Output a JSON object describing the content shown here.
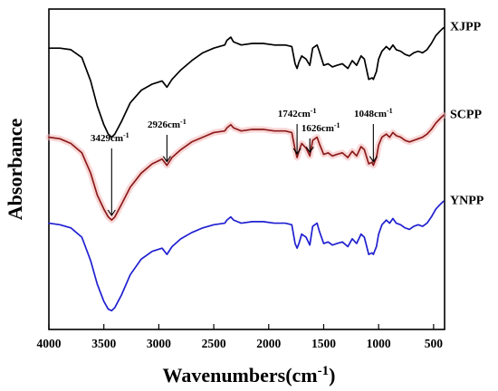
{
  "chart_data": {
    "type": "line",
    "xlabel": "Wavenumbers",
    "xlabel_unit_base": "(cm",
    "xlabel_unit_exp": "-1",
    "xlabel_unit_close": ")",
    "ylabel": "Absorbance",
    "xlim": [
      4000,
      400
    ],
    "x_reversed": true,
    "x_ticks": [
      4000,
      3500,
      3000,
      2500,
      2000,
      1500,
      1000,
      500
    ],
    "y_ticks_shown": false,
    "grid": false,
    "series": [
      {
        "name": "XJPP",
        "color": "#000000",
        "points": [
          [
            4000,
            2.25
          ],
          [
            3900,
            2.25
          ],
          [
            3800,
            2.24
          ],
          [
            3700,
            2.19
          ],
          [
            3620,
            2.04
          ],
          [
            3560,
            1.88
          ],
          [
            3500,
            1.76
          ],
          [
            3460,
            1.7
          ],
          [
            3429,
            1.68
          ],
          [
            3400,
            1.7
          ],
          [
            3340,
            1.78
          ],
          [
            3260,
            1.9
          ],
          [
            3160,
            1.98
          ],
          [
            3060,
            2.02
          ],
          [
            2970,
            2.04
          ],
          [
            2926,
            2.0
          ],
          [
            2880,
            2.05
          ],
          [
            2800,
            2.11
          ],
          [
            2700,
            2.17
          ],
          [
            2600,
            2.22
          ],
          [
            2500,
            2.25
          ],
          [
            2400,
            2.27
          ],
          [
            2380,
            2.3
          ],
          [
            2345,
            2.32
          ],
          [
            2320,
            2.29
          ],
          [
            2250,
            2.27
          ],
          [
            2150,
            2.28
          ],
          [
            2050,
            2.28
          ],
          [
            1950,
            2.27
          ],
          [
            1850,
            2.27
          ],
          [
            1790,
            2.26
          ],
          [
            1760,
            2.15
          ],
          [
            1742,
            2.12
          ],
          [
            1725,
            2.16
          ],
          [
            1700,
            2.2
          ],
          [
            1660,
            2.18
          ],
          [
            1626,
            2.14
          ],
          [
            1600,
            2.25
          ],
          [
            1560,
            2.27
          ],
          [
            1540,
            2.23
          ],
          [
            1500,
            2.14
          ],
          [
            1460,
            2.15
          ],
          [
            1420,
            2.13
          ],
          [
            1380,
            2.14
          ],
          [
            1330,
            2.15
          ],
          [
            1280,
            2.12
          ],
          [
            1240,
            2.17
          ],
          [
            1200,
            2.14
          ],
          [
            1160,
            2.2
          ],
          [
            1130,
            2.18
          ],
          [
            1090,
            2.05
          ],
          [
            1060,
            2.06
          ],
          [
            1048,
            2.05
          ],
          [
            1020,
            2.1
          ],
          [
            1000,
            2.18
          ],
          [
            970,
            2.23
          ],
          [
            930,
            2.26
          ],
          [
            900,
            2.24
          ],
          [
            870,
            2.27
          ],
          [
            840,
            2.24
          ],
          [
            800,
            2.23
          ],
          [
            760,
            2.21
          ],
          [
            720,
            2.2
          ],
          [
            680,
            2.22
          ],
          [
            640,
            2.23
          ],
          [
            600,
            2.22
          ],
          [
            560,
            2.24
          ],
          [
            520,
            2.28
          ],
          [
            480,
            2.33
          ],
          [
            440,
            2.36
          ],
          [
            410,
            2.38
          ]
        ]
      },
      {
        "name": "SCPP",
        "color": "#8B1A1A",
        "points": [
          [
            4000,
            1.68
          ],
          [
            3900,
            1.67
          ],
          [
            3800,
            1.64
          ],
          [
            3700,
            1.58
          ],
          [
            3620,
            1.45
          ],
          [
            3560,
            1.31
          ],
          [
            3500,
            1.22
          ],
          [
            3460,
            1.17
          ],
          [
            3429,
            1.15
          ],
          [
            3400,
            1.17
          ],
          [
            3340,
            1.25
          ],
          [
            3260,
            1.36
          ],
          [
            3160,
            1.45
          ],
          [
            3060,
            1.51
          ],
          [
            2970,
            1.54
          ],
          [
            2926,
            1.5
          ],
          [
            2880,
            1.55
          ],
          [
            2800,
            1.6
          ],
          [
            2700,
            1.65
          ],
          [
            2600,
            1.68
          ],
          [
            2500,
            1.71
          ],
          [
            2400,
            1.72
          ],
          [
            2380,
            1.74
          ],
          [
            2345,
            1.76
          ],
          [
            2320,
            1.74
          ],
          [
            2250,
            1.72
          ],
          [
            2150,
            1.73
          ],
          [
            2050,
            1.73
          ],
          [
            1950,
            1.72
          ],
          [
            1850,
            1.72
          ],
          [
            1790,
            1.71
          ],
          [
            1760,
            1.6
          ],
          [
            1742,
            1.55
          ],
          [
            1725,
            1.59
          ],
          [
            1700,
            1.64
          ],
          [
            1660,
            1.61
          ],
          [
            1626,
            1.56
          ],
          [
            1600,
            1.66
          ],
          [
            1560,
            1.68
          ],
          [
            1540,
            1.64
          ],
          [
            1500,
            1.57
          ],
          [
            1460,
            1.58
          ],
          [
            1420,
            1.56
          ],
          [
            1380,
            1.57
          ],
          [
            1330,
            1.58
          ],
          [
            1280,
            1.55
          ],
          [
            1240,
            1.59
          ],
          [
            1200,
            1.56
          ],
          [
            1160,
            1.62
          ],
          [
            1130,
            1.6
          ],
          [
            1090,
            1.51
          ],
          [
            1060,
            1.52
          ],
          [
            1048,
            1.5
          ],
          [
            1020,
            1.55
          ],
          [
            1000,
            1.63
          ],
          [
            970,
            1.68
          ],
          [
            930,
            1.7
          ],
          [
            900,
            1.68
          ],
          [
            870,
            1.71
          ],
          [
            840,
            1.69
          ],
          [
            800,
            1.68
          ],
          [
            760,
            1.66
          ],
          [
            720,
            1.65
          ],
          [
            680,
            1.66
          ],
          [
            640,
            1.67
          ],
          [
            600,
            1.68
          ],
          [
            560,
            1.7
          ],
          [
            520,
            1.73
          ],
          [
            480,
            1.77
          ],
          [
            440,
            1.8
          ],
          [
            410,
            1.82
          ]
        ]
      },
      {
        "name": "YNPP",
        "color": "#1F1FD0",
        "points": [
          [
            4000,
            1.13
          ],
          [
            3900,
            1.12
          ],
          [
            3800,
            1.1
          ],
          [
            3700,
            1.04
          ],
          [
            3620,
            0.89
          ],
          [
            3560,
            0.74
          ],
          [
            3500,
            0.63
          ],
          [
            3460,
            0.58
          ],
          [
            3429,
            0.57
          ],
          [
            3400,
            0.59
          ],
          [
            3340,
            0.67
          ],
          [
            3260,
            0.8
          ],
          [
            3160,
            0.9
          ],
          [
            3060,
            0.95
          ],
          [
            2970,
            0.97
          ],
          [
            2926,
            0.93
          ],
          [
            2880,
            0.98
          ],
          [
            2800,
            1.03
          ],
          [
            2700,
            1.07
          ],
          [
            2600,
            1.1
          ],
          [
            2500,
            1.12
          ],
          [
            2400,
            1.13
          ],
          [
            2380,
            1.15
          ],
          [
            2345,
            1.17
          ],
          [
            2320,
            1.15
          ],
          [
            2250,
            1.13
          ],
          [
            2150,
            1.14
          ],
          [
            2050,
            1.14
          ],
          [
            1950,
            1.13
          ],
          [
            1850,
            1.13
          ],
          [
            1790,
            1.12
          ],
          [
            1760,
            1.0
          ],
          [
            1742,
            0.97
          ],
          [
            1725,
            1.0
          ],
          [
            1700,
            1.06
          ],
          [
            1660,
            1.04
          ],
          [
            1626,
            0.99
          ],
          [
            1600,
            1.11
          ],
          [
            1560,
            1.13
          ],
          [
            1540,
            1.08
          ],
          [
            1500,
            1.0
          ],
          [
            1460,
            1.01
          ],
          [
            1420,
            0.99
          ],
          [
            1380,
            1.0
          ],
          [
            1330,
            1.01
          ],
          [
            1280,
            0.98
          ],
          [
            1240,
            1.03
          ],
          [
            1200,
            1.0
          ],
          [
            1160,
            1.06
          ],
          [
            1130,
            1.04
          ],
          [
            1090,
            0.93
          ],
          [
            1060,
            0.94
          ],
          [
            1048,
            0.93
          ],
          [
            1020,
            0.98
          ],
          [
            1000,
            1.06
          ],
          [
            970,
            1.12
          ],
          [
            930,
            1.15
          ],
          [
            900,
            1.13
          ],
          [
            870,
            1.16
          ],
          [
            840,
            1.13
          ],
          [
            800,
            1.12
          ],
          [
            760,
            1.1
          ],
          [
            720,
            1.09
          ],
          [
            680,
            1.11
          ],
          [
            640,
            1.12
          ],
          [
            600,
            1.11
          ],
          [
            560,
            1.13
          ],
          [
            520,
            1.17
          ],
          [
            480,
            1.22
          ],
          [
            440,
            1.25
          ],
          [
            410,
            1.27
          ]
        ]
      }
    ],
    "annotations": [
      {
        "label_base": "3429cm",
        "label_exp": "-1",
        "x": 3429,
        "series_index": 1
      },
      {
        "label_base": "2926cm",
        "label_exp": "-1",
        "x": 2926,
        "series_index": 1
      },
      {
        "label_base": "1742cm",
        "label_exp": "-1",
        "x": 1742,
        "series_index": 1
      },
      {
        "label_base": "1626cm",
        "label_exp": "-1",
        "x": 1626,
        "series_index": 1
      },
      {
        "label_base": "1048cm",
        "label_exp": "-1",
        "x": 1048,
        "series_index": 1
      }
    ]
  }
}
